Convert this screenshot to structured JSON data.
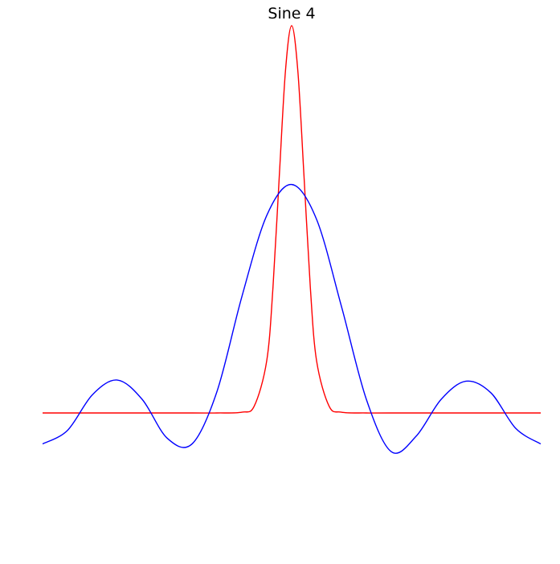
{
  "chart_data": {
    "type": "line",
    "title": "Sine 4",
    "xlabel": "",
    "ylabel": "",
    "axes_visible": false,
    "grid": false,
    "legend": "none",
    "xlim": [
      -1,
      1
    ],
    "ylim": [
      -0.5,
      1.0
    ],
    "series": [
      {
        "color": "#ff0000",
        "x": [
          -1.0,
          -0.4,
          -0.3,
          -0.2,
          -0.15,
          -0.1,
          -0.075,
          -0.05,
          -0.025,
          0.0,
          0.025,
          0.05,
          0.075,
          0.1,
          0.15,
          0.2,
          0.3,
          0.4,
          1.0
        ],
        "y": [
          0.0,
          0.0,
          0.0,
          0.002,
          0.018,
          0.135,
          0.324,
          0.607,
          0.882,
          1.0,
          0.882,
          0.607,
          0.324,
          0.135,
          0.018,
          0.002,
          0.0,
          0.0,
          0.0
        ]
      },
      {
        "color": "#0000ff",
        "x": [
          -1.0,
          -0.9,
          -0.8,
          -0.7,
          -0.6,
          -0.5,
          -0.4,
          -0.3,
          -0.2,
          -0.1,
          0.0,
          0.1,
          0.2,
          0.3,
          0.4,
          0.5,
          0.6,
          0.7,
          0.8,
          0.9,
          1.0
        ],
        "y": [
          -0.08,
          -0.045,
          0.047,
          0.085,
          0.035,
          -0.065,
          -0.08,
          0.055,
          0.3,
          0.51,
          0.59,
          0.5,
          0.275,
          0.035,
          -0.1,
          -0.06,
          0.035,
          0.082,
          0.052,
          -0.04,
          -0.08
        ]
      }
    ]
  }
}
